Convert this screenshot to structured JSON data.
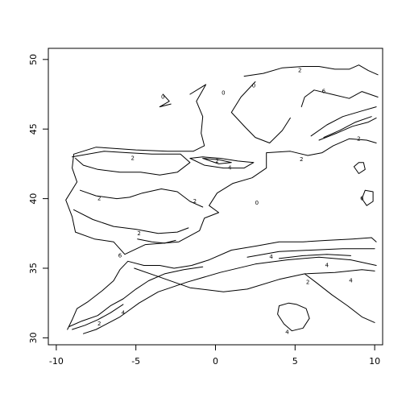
{
  "chart_data": {
    "type": "contour",
    "title": "",
    "xlabel": "",
    "ylabel": "",
    "xlim": [
      -10.5,
      10.5
    ],
    "ylim": [
      29.5,
      50.8
    ],
    "x_ticks": [
      -10,
      -5,
      0,
      5,
      10
    ],
    "y_ticks": [
      30,
      35,
      40,
      45,
      50
    ],
    "x_tick_labels": [
      "-10",
      "-5",
      "0",
      "5",
      "10"
    ],
    "y_tick_labels": [
      "30",
      "35",
      "40",
      "45",
      "50"
    ],
    "line_color": "#000000",
    "contours": [
      {
        "level": "0",
        "points": [
          [
            -3.3,
            47.5
          ],
          [
            -2.9,
            47.0
          ],
          [
            -3.5,
            46.6
          ],
          [
            -2.8,
            46.8
          ]
        ]
      },
      {
        "level": "0",
        "points": [
          [
            -1.6,
            47.5
          ],
          [
            -0.6,
            48.2
          ],
          [
            -1.2,
            47.0
          ],
          [
            -0.8,
            45.9
          ],
          [
            -0.9,
            44.7
          ],
          [
            -0.7,
            43.8
          ],
          [
            -1.4,
            43.4
          ],
          [
            -3.0,
            43.4
          ],
          [
            -5.0,
            43.5
          ],
          [
            -7.5,
            43.7
          ],
          [
            -8.9,
            43.2
          ],
          [
            -9.0,
            42.2
          ],
          [
            -8.7,
            41.2
          ],
          [
            -9.4,
            39.9
          ],
          [
            -9.0,
            38.7
          ],
          [
            -8.8,
            37.6
          ],
          [
            -7.6,
            37.1
          ],
          [
            -6.4,
            36.9
          ],
          [
            -5.7,
            36.0
          ],
          [
            -4.4,
            36.7
          ],
          [
            -2.3,
            36.9
          ],
          [
            -1.0,
            37.7
          ],
          [
            -0.7,
            38.6
          ],
          [
            0.2,
            39.0
          ],
          [
            -0.4,
            39.5
          ],
          [
            0.1,
            40.4
          ],
          [
            1.1,
            41.1
          ],
          [
            2.3,
            41.5
          ],
          [
            3.2,
            42.2
          ],
          [
            3.2,
            43.3
          ],
          [
            4.7,
            43.4
          ],
          [
            5.8,
            43.1
          ],
          [
            6.7,
            43.3
          ],
          [
            7.4,
            43.8
          ],
          [
            8.4,
            44.3
          ],
          [
            9.5,
            44.2
          ],
          [
            10.1,
            44.0
          ]
        ]
      },
      {
        "level": "0",
        "points": [
          [
            1.8,
            48.8
          ],
          [
            3.0,
            49.0
          ],
          [
            4.2,
            49.4
          ],
          [
            5.5,
            49.5
          ],
          [
            6.5,
            49.5
          ],
          [
            7.5,
            49.3
          ],
          [
            8.4,
            49.3
          ],
          [
            9.0,
            49.6
          ],
          [
            9.6,
            49.2
          ],
          [
            10.2,
            48.9
          ]
        ]
      },
      {
        "level": "0",
        "points": [
          [
            5.4,
            46.6
          ],
          [
            5.6,
            47.3
          ],
          [
            6.2,
            47.8
          ],
          [
            7.3,
            47.5
          ],
          [
            8.4,
            47.2
          ],
          [
            9.2,
            47.7
          ],
          [
            10.2,
            47.3
          ]
        ]
      },
      {
        "level": "0",
        "points": [
          [
            2.5,
            48.4
          ],
          [
            1.6,
            47.3
          ],
          [
            1.0,
            46.2
          ],
          [
            1.9,
            45.1
          ],
          [
            2.5,
            44.4
          ],
          [
            3.4,
            44.0
          ],
          [
            4.2,
            44.9
          ],
          [
            4.7,
            45.8
          ]
        ]
      },
      {
        "level": "0",
        "points": [
          [
            -9.3,
            30.6
          ],
          [
            -9.0,
            31.3
          ],
          [
            -8.7,
            32.1
          ],
          [
            -8.0,
            32.6
          ],
          [
            -7.1,
            33.4
          ],
          [
            -6.4,
            34.1
          ],
          [
            -6.0,
            34.9
          ],
          [
            -5.5,
            35.5
          ],
          [
            -4.5,
            35.2
          ],
          [
            -3.5,
            35.2
          ],
          [
            -2.6,
            35.0
          ],
          [
            -1.5,
            35.2
          ],
          [
            -0.4,
            35.6
          ],
          [
            1.0,
            36.3
          ],
          [
            2.6,
            36.6
          ],
          [
            4.0,
            36.9
          ],
          [
            5.5,
            36.9
          ],
          [
            7.0,
            37.0
          ],
          [
            8.6,
            37.1
          ],
          [
            9.8,
            37.2
          ],
          [
            10.1,
            36.9
          ]
        ]
      },
      {
        "level": "0",
        "points": [
          [
            -8.3,
            30.3
          ],
          [
            -7.5,
            30.6
          ],
          [
            -6.0,
            31.5
          ],
          [
            -4.8,
            32.5
          ],
          [
            -3.6,
            33.3
          ],
          [
            -1.8,
            34.0
          ],
          [
            0.3,
            34.7
          ],
          [
            2.5,
            35.3
          ],
          [
            4.5,
            35.6
          ],
          [
            6.5,
            35.8
          ],
          [
            8.5,
            35.6
          ],
          [
            10.1,
            35.2
          ]
        ]
      },
      {
        "level": "0",
        "points": [
          [
            -5.1,
            35.0
          ],
          [
            -3.6,
            34.4
          ],
          [
            -1.6,
            33.6
          ],
          [
            0.5,
            33.3
          ],
          [
            2.0,
            33.5
          ],
          [
            4.0,
            34.2
          ],
          [
            5.6,
            34.6
          ],
          [
            7.5,
            34.7
          ],
          [
            9.2,
            34.9
          ],
          [
            10.0,
            34.8
          ]
        ]
      },
      {
        "level": "0",
        "points": [
          [
            5.6,
            34.6
          ],
          [
            6.3,
            34.0
          ],
          [
            7.3,
            33.1
          ],
          [
            8.3,
            32.3
          ],
          [
            9.2,
            31.5
          ],
          [
            10.0,
            31.1
          ]
        ]
      },
      {
        "level": "4",
        "points": [
          [
            4.6,
            32.5
          ],
          [
            4.0,
            32.3
          ],
          [
            3.9,
            31.7
          ],
          [
            4.3,
            31.0
          ],
          [
            4.8,
            30.5
          ],
          [
            5.5,
            30.7
          ],
          [
            5.9,
            31.4
          ],
          [
            5.7,
            32.1
          ],
          [
            5.1,
            32.4
          ],
          [
            4.6,
            32.5
          ]
        ]
      },
      {
        "level": "2",
        "points": [
          [
            -9.0,
            43.0
          ],
          [
            -7.0,
            43.4
          ],
          [
            -5.5,
            43.3
          ],
          [
            -4.0,
            43.2
          ],
          [
            -2.2,
            43.2
          ],
          [
            -1.6,
            42.6
          ],
          [
            -2.4,
            41.9
          ],
          [
            -3.5,
            41.7
          ],
          [
            -4.7,
            41.9
          ],
          [
            -6.0,
            41.9
          ],
          [
            -7.4,
            42.1
          ],
          [
            -8.3,
            42.4
          ],
          [
            -8.8,
            42.9
          ]
        ]
      },
      {
        "level": "2",
        "points": [
          [
            -8.5,
            40.6
          ],
          [
            -7.5,
            40.2
          ],
          [
            -6.2,
            40.0
          ],
          [
            -5.4,
            40.1
          ],
          [
            -4.6,
            40.4
          ],
          [
            -3.4,
            40.7
          ],
          [
            -2.4,
            40.5
          ],
          [
            -1.6,
            39.8
          ],
          [
            -0.8,
            39.4
          ]
        ]
      },
      {
        "level": "2",
        "points": [
          [
            -8.9,
            39.2
          ],
          [
            -7.7,
            38.5
          ],
          [
            -6.4,
            38.0
          ],
          [
            -5.0,
            37.8
          ],
          [
            -3.6,
            37.5
          ],
          [
            -2.4,
            37.6
          ],
          [
            -1.7,
            37.9
          ]
        ]
      },
      {
        "level": "2",
        "points": [
          [
            -4.9,
            37.1
          ],
          [
            -4.0,
            36.9
          ],
          [
            -3.2,
            36.8
          ],
          [
            -2.5,
            37.0
          ]
        ]
      },
      {
        "level": "2",
        "points": [
          [
            -1.6,
            42.9
          ],
          [
            -0.8,
            43.0
          ],
          [
            0.3,
            42.9
          ],
          [
            1.4,
            42.7
          ],
          [
            2.4,
            42.6
          ],
          [
            1.8,
            42.2
          ],
          [
            0.5,
            42.2
          ],
          [
            -0.7,
            42.4
          ],
          [
            -1.6,
            42.9
          ]
        ]
      },
      {
        "level": "4",
        "points": [
          [
            -0.8,
            42.9
          ],
          [
            0.2,
            42.8
          ],
          [
            1.0,
            42.6
          ],
          [
            0.2,
            42.5
          ],
          [
            -0.8,
            42.9
          ]
        ]
      },
      {
        "level": "2",
        "points": [
          [
            6.0,
            44.5
          ],
          [
            7.0,
            45.3
          ],
          [
            8.0,
            45.9
          ],
          [
            9.2,
            46.3
          ],
          [
            10.1,
            46.6
          ]
        ]
      },
      {
        "level": "2",
        "points": [
          [
            6.5,
            44.2
          ],
          [
            7.6,
            44.7
          ],
          [
            8.6,
            45.2
          ],
          [
            9.6,
            45.5
          ],
          [
            10.1,
            45.8
          ]
        ]
      },
      {
        "level": "4",
        "points": [
          [
            6.8,
            44.4
          ],
          [
            7.8,
            44.9
          ],
          [
            8.8,
            45.5
          ],
          [
            9.8,
            45.9
          ]
        ]
      },
      {
        "level": "2",
        "points": [
          [
            -9.2,
            30.8
          ],
          [
            -8.4,
            31.2
          ],
          [
            -7.4,
            31.6
          ],
          [
            -6.6,
            32.3
          ],
          [
            -5.8,
            32.8
          ],
          [
            -5.0,
            33.5
          ],
          [
            -4.2,
            34.1
          ],
          [
            -3.2,
            34.6
          ],
          [
            -2.0,
            34.9
          ],
          [
            -0.8,
            35.1
          ]
        ]
      },
      {
        "level": "4",
        "points": [
          [
            -9.0,
            30.6
          ],
          [
            -8.2,
            30.9
          ],
          [
            -7.4,
            31.3
          ],
          [
            -6.6,
            31.8
          ],
          [
            -5.8,
            32.4
          ]
        ]
      },
      {
        "level": "2",
        "points": [
          [
            2.0,
            35.8
          ],
          [
            4.0,
            36.2
          ],
          [
            6.0,
            36.3
          ],
          [
            8.0,
            36.4
          ],
          [
            10.0,
            36.4
          ]
        ]
      },
      {
        "level": "4",
        "points": [
          [
            4.0,
            35.7
          ],
          [
            5.5,
            35.9
          ],
          [
            7.0,
            36.0
          ],
          [
            8.5,
            35.9
          ]
        ]
      },
      {
        "level": "2",
        "points": [
          [
            9.4,
            40.6
          ],
          [
            9.2,
            40.0
          ],
          [
            9.5,
            39.5
          ],
          [
            9.9,
            39.8
          ],
          [
            9.9,
            40.5
          ],
          [
            9.4,
            40.6
          ]
        ]
      },
      {
        "level": "2",
        "points": [
          [
            9.0,
            42.6
          ],
          [
            8.7,
            42.3
          ],
          [
            9.0,
            41.8
          ],
          [
            9.4,
            42.1
          ],
          [
            9.3,
            42.6
          ],
          [
            9.0,
            42.6
          ]
        ]
      }
    ],
    "labels": [
      {
        "text": "0",
        "x": -3.3,
        "y": 47.3
      },
      {
        "text": "0",
        "x": 0.5,
        "y": 47.6
      },
      {
        "text": "0",
        "x": 2.4,
        "y": 48.1
      },
      {
        "text": "2",
        "x": 5.3,
        "y": 49.2
      },
      {
        "text": "6",
        "x": 6.8,
        "y": 47.7
      },
      {
        "text": "2",
        "x": -5.2,
        "y": 42.9
      },
      {
        "text": "2",
        "x": 0.1,
        "y": 42.7
      },
      {
        "text": "4",
        "x": 0.9,
        "y": 42.2
      },
      {
        "text": "2",
        "x": 5.4,
        "y": 42.8
      },
      {
        "text": "2",
        "x": -7.3,
        "y": 40.0
      },
      {
        "text": "2",
        "x": -1.3,
        "y": 39.8
      },
      {
        "text": "0",
        "x": 2.6,
        "y": 39.7
      },
      {
        "text": "6",
        "x": 9.2,
        "y": 40.0
      },
      {
        "text": "2",
        "x": -4.8,
        "y": 37.5
      },
      {
        "text": "6",
        "x": -6.0,
        "y": 35.9
      },
      {
        "text": "4",
        "x": 3.5,
        "y": 35.8
      },
      {
        "text": "4",
        "x": 7.0,
        "y": 35.2
      },
      {
        "text": "4",
        "x": 8.5,
        "y": 34.1
      },
      {
        "text": "2",
        "x": 5.8,
        "y": 34.0
      },
      {
        "text": "4",
        "x": -5.8,
        "y": 31.8
      },
      {
        "text": "2",
        "x": -7.3,
        "y": 31.0
      },
      {
        "text": "4",
        "x": 4.5,
        "y": 30.4
      },
      {
        "text": "2",
        "x": 9.0,
        "y": 44.3
      }
    ]
  }
}
